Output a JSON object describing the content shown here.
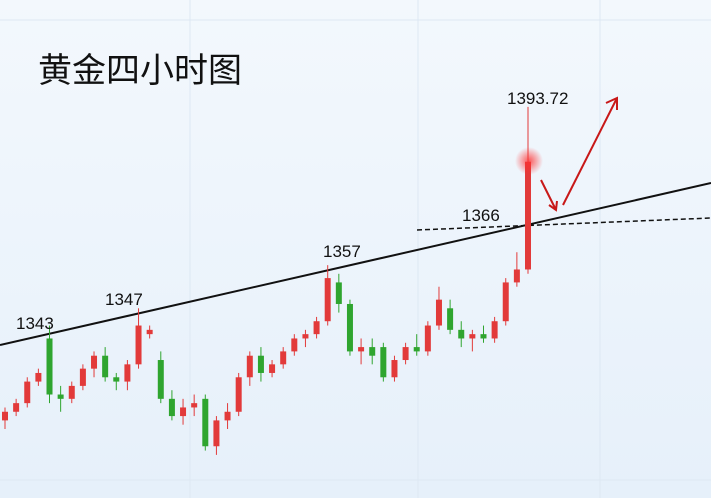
{
  "chart_data": {
    "type": "candlestick",
    "title": "黄金四小时图",
    "annotations": [
      "1343",
      "1347",
      "1357",
      "1366",
      "1393.72"
    ],
    "up_color": "#e23a3a",
    "down_color": "#2fa52f",
    "ylim": [
      1303,
      1418.5
    ],
    "open": [
      1321,
      1323,
      1325,
      1330,
      1340,
      1327,
      1326,
      1329,
      1333,
      1336,
      1331,
      1330,
      1334,
      1341,
      1335,
      1326,
      1322,
      1324,
      1326,
      1315,
      1321,
      1323,
      1331,
      1336,
      1332,
      1334,
      1337,
      1340,
      1341,
      1344,
      1353,
      1348,
      1337,
      1338,
      1338,
      1331,
      1335,
      1338,
      1337,
      1343,
      1347,
      1342,
      1340,
      1341,
      1340,
      1344,
      1353,
      1356
    ],
    "high": [
      1324,
      1326,
      1331,
      1333,
      1343,
      1329,
      1330,
      1334,
      1337,
      1338,
      1332,
      1335,
      1347,
      1343,
      1337,
      1328,
      1326,
      1327,
      1327,
      1322,
      1325,
      1332,
      1337,
      1338,
      1335,
      1338,
      1341,
      1342,
      1345,
      1357,
      1355,
      1349,
      1340,
      1340,
      1339,
      1336,
      1339,
      1341,
      1344,
      1352,
      1349,
      1344,
      1342,
      1343,
      1345,
      1354,
      1360,
      1393.72
    ],
    "low": [
      1319,
      1322,
      1324,
      1329,
      1325,
      1323,
      1325,
      1328,
      1331,
      1330,
      1328,
      1328,
      1333,
      1340,
      1325,
      1321,
      1320,
      1322,
      1314,
      1313,
      1319,
      1322,
      1329,
      1330,
      1331,
      1333,
      1336,
      1338,
      1340,
      1343,
      1346,
      1336,
      1334,
      1334,
      1330,
      1330,
      1334,
      1336,
      1336,
      1342,
      1341,
      1338,
      1337,
      1339,
      1339,
      1343,
      1352,
      1355
    ],
    "close": [
      1323,
      1325,
      1330,
      1332,
      1327,
      1326,
      1329,
      1333,
      1336,
      1331,
      1330,
      1334,
      1343,
      1342,
      1326,
      1322,
      1324,
      1325,
      1315,
      1321,
      1323,
      1331,
      1336,
      1332,
      1334,
      1337,
      1340,
      1341,
      1344,
      1354,
      1348,
      1337,
      1338,
      1336,
      1331,
      1335,
      1338,
      1337,
      1343,
      1349,
      1342,
      1340,
      1341,
      1340,
      1344,
      1353,
      1356,
      1381
    ]
  }
}
